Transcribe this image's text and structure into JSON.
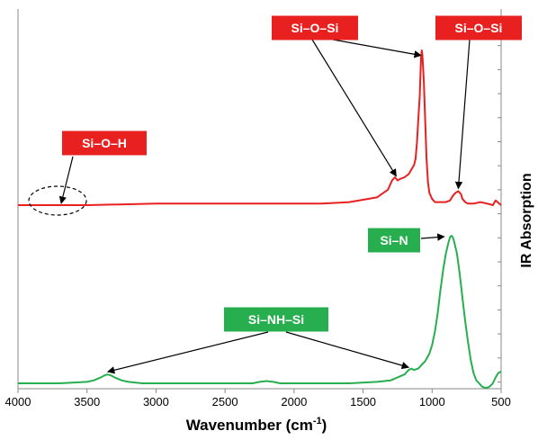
{
  "chart_data": {
    "type": "line",
    "xlabel_main": "Wavenumber (cm",
    "xlabel_sup": "-1",
    "xlabel_end": ")",
    "ylabel": "IR Absorption",
    "xlim": [
      4000,
      500
    ],
    "x_reversed": true,
    "x_ticks": [
      "4000",
      "3500",
      "3000",
      "2500",
      "2000",
      "1500",
      "1000",
      "500"
    ],
    "grid": false,
    "series": [
      {
        "color": "#e8201f",
        "x": [
          4000,
          3800,
          3500,
          3000,
          2500,
          2000,
          1800,
          1600,
          1400,
          1320,
          1290,
          1270,
          1250,
          1230,
          1200,
          1170,
          1150,
          1130,
          1120,
          1110,
          1100,
          1090,
          1080,
          1075,
          1070,
          1060,
          1050,
          1040,
          1030,
          1020,
          1000,
          980,
          960,
          940,
          900,
          870,
          850,
          830,
          810,
          800,
          790,
          780,
          760,
          740,
          700,
          650,
          600,
          560,
          540,
          500
        ],
        "y": [
          0.0,
          0.0,
          0.0,
          0.01,
          0.01,
          0.01,
          0.01,
          0.02,
          0.05,
          0.1,
          0.16,
          0.18,
          0.16,
          0.17,
          0.18,
          0.2,
          0.23,
          0.26,
          0.3,
          0.4,
          0.55,
          0.7,
          0.95,
          1.0,
          0.97,
          0.8,
          0.55,
          0.3,
          0.15,
          0.08,
          0.04,
          0.02,
          0.02,
          0.02,
          0.02,
          0.03,
          0.06,
          0.08,
          0.09,
          0.08,
          0.07,
          0.04,
          0.02,
          0.01,
          0.01,
          0.02,
          0.01,
          0.0,
          0.03,
          0.0
        ]
      },
      {
        "color": "#27ae4f",
        "x": [
          4000,
          3700,
          3500,
          3450,
          3400,
          3370,
          3350,
          3330,
          3300,
          3250,
          3200,
          3100,
          3000,
          2800,
          2500,
          2300,
          2250,
          2200,
          2150,
          2100,
          2000,
          1800,
          1600,
          1400,
          1300,
          1250,
          1200,
          1170,
          1150,
          1130,
          1100,
          1070,
          1050,
          1020,
          1000,
          980,
          960,
          940,
          920,
          900,
          880,
          870,
          860,
          850,
          840,
          820,
          800,
          780,
          760,
          740,
          720,
          700,
          680,
          660,
          640,
          620,
          600,
          580,
          560,
          540,
          520,
          500
        ],
        "y": [
          0.0,
          0.0,
          0.01,
          0.02,
          0.04,
          0.055,
          0.06,
          0.055,
          0.04,
          0.02,
          0.01,
          0.0,
          0.0,
          0.0,
          0.0,
          0.0,
          0.01,
          0.015,
          0.01,
          0.0,
          0.0,
          0.0,
          0.0,
          0.01,
          0.02,
          0.04,
          0.06,
          0.09,
          0.1,
          0.09,
          0.1,
          0.13,
          0.15,
          0.2,
          0.26,
          0.35,
          0.47,
          0.63,
          0.77,
          0.88,
          0.96,
          0.99,
          1.0,
          0.99,
          0.96,
          0.88,
          0.74,
          0.58,
          0.42,
          0.28,
          0.16,
          0.07,
          0.02,
          0.0,
          -0.02,
          -0.03,
          -0.03,
          -0.02,
          0.0,
          0.04,
          0.07,
          0.08
        ]
      }
    ],
    "annotations": [
      {
        "text": "Si–O–H",
        "color": "#e8201f",
        "target_x": 3700,
        "series": 0
      },
      {
        "text": "Si–O–Si",
        "color": "#e8201f",
        "target_x": [
          1260,
          1080
        ],
        "series": 0
      },
      {
        "text": "Si–O–Si",
        "color": "#e8201f",
        "target_x": 810,
        "series": 0
      },
      {
        "text": "Si–N",
        "color": "#27ae4f",
        "target_x": 860,
        "series": 1
      },
      {
        "text": "Si–NH–Si",
        "color": "#27ae4f",
        "target_x": [
          3350,
          1170
        ],
        "series": 1
      }
    ]
  }
}
